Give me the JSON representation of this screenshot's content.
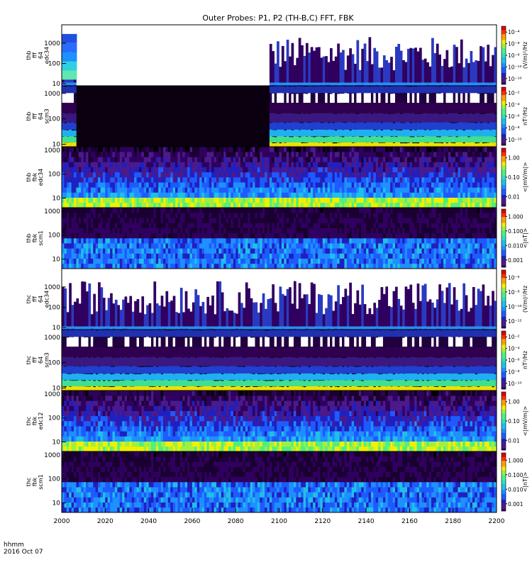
{
  "chart_data": {
    "type": "heatmap",
    "title": "Outer Probes: P1, P2 (TH-B,C) FFT, FBK",
    "x_ticks": [
      "2000",
      "2020",
      "2040",
      "2060",
      "2080",
      "2100",
      "2120",
      "2140",
      "2160",
      "2180",
      "2200"
    ],
    "x_range": [
      2000,
      2200
    ],
    "x_label_line1": "hhmm",
    "x_label_line2": "2016 Oct 07",
    "panels": [
      {
        "ylabel_lines": [
          "thb",
          "fff",
          "64",
          "edc34"
        ],
        "yticks": [
          {
            "v": 10,
            "t": "10"
          },
          {
            "v": 100,
            "t": "100"
          },
          {
            "v": 1000,
            "t": "1000"
          }
        ],
        "ylim": [
          8,
          8000
        ],
        "cb_label": "(V/m)²/Hz",
        "cb_ticks": [
          "10⁻¹⁰",
          "10⁻¹²",
          "10⁻⁶",
          "10⁻⁸",
          "10⁻⁴"
        ],
        "style": "edc-sparse",
        "gaps": [
          [
            2007,
            2096
          ]
        ],
        "bands": [
          {
            "x0": 2000,
            "x1": 2007,
            "start": 2000,
            "colors": [
              "#2050e0",
              "#2a6cff",
              "#1e90ff",
              "#30d0e0",
              "#60e8b0"
            ]
          }
        ]
      },
      {
        "ylabel_lines": [
          "thb",
          "fff",
          "64",
          "scm3"
        ],
        "yticks": [
          {
            "v": 10,
            "t": "10"
          },
          {
            "v": 100,
            "t": "100"
          },
          {
            "v": 1000,
            "t": "1000"
          }
        ],
        "ylim": [
          8,
          2000
        ],
        "cb_label": "nT²/Hz",
        "cb_ticks": [
          "10⁻¹⁰",
          "10⁻⁸",
          "10⁻⁶",
          "10⁻⁴",
          "10⁻²"
        ],
        "style": "scm-dense",
        "gaps": [
          [
            2007,
            2096
          ]
        ]
      },
      {
        "ylabel_lines": [
          "thb",
          "fbk",
          "edc34"
        ],
        "yticks": [
          {
            "v": 10,
            "t": "10"
          },
          {
            "v": 100,
            "t": "100"
          },
          {
            "v": 1000,
            "t": "1000"
          }
        ],
        "ylim": [
          4,
          1400
        ],
        "cb_label": "<|mV/m|>",
        "cb_ticks": [
          "0.01",
          "0.10",
          "1.00"
        ],
        "style": "fbk-edc",
        "gaps": []
      },
      {
        "ylabel_lines": [
          "thb",
          "fbk",
          "scm1"
        ],
        "yticks": [
          {
            "v": 10,
            "t": "10"
          },
          {
            "v": 100,
            "t": "100"
          },
          {
            "v": 1000,
            "t": "1000"
          }
        ],
        "ylim": [
          4,
          1400
        ],
        "cb_label": "<|nT|>",
        "cb_ticks": [
          "0.001",
          "0.010",
          "0.100",
          "1.000"
        ],
        "style": "fbk-scm",
        "gaps": []
      },
      {
        "ylabel_lines": [
          "thc",
          "fff",
          "64",
          "edc34"
        ],
        "yticks": [
          {
            "v": 10,
            "t": "10"
          },
          {
            "v": 100,
            "t": "100"
          },
          {
            "v": 1000,
            "t": "1000"
          }
        ],
        "ylim": [
          8,
          8000
        ],
        "cb_label": "(V/m)²/Hz",
        "cb_ticks": [
          "10⁻¹²",
          "10⁻¹⁰",
          "10⁻⁸",
          "10⁻⁶"
        ],
        "style": "edc-sparse",
        "gaps": []
      },
      {
        "ylabel_lines": [
          "thc",
          "fff",
          "64",
          "scm3"
        ],
        "yticks": [
          {
            "v": 10,
            "t": "10"
          },
          {
            "v": 100,
            "t": "100"
          },
          {
            "v": 1000,
            "t": "1000"
          }
        ],
        "ylim": [
          8,
          2000
        ],
        "cb_label": "nT²/Hz",
        "cb_ticks": [
          "10⁻¹⁰",
          "10⁻⁸",
          "10⁻⁶",
          "10⁻⁴",
          "10⁻²"
        ],
        "style": "scm-dense",
        "gaps": []
      },
      {
        "ylabel_lines": [
          "thc",
          "fbk",
          "edc12"
        ],
        "yticks": [
          {
            "v": 10,
            "t": "10"
          },
          {
            "v": 100,
            "t": "100"
          },
          {
            "v": 1000,
            "t": "1000"
          }
        ],
        "ylim": [
          4,
          1400
        ],
        "cb_label": "<|mV/m|>",
        "cb_ticks": [
          "0.01",
          "0.10",
          "1.00"
        ],
        "style": "fbk-edc",
        "gaps": []
      },
      {
        "ylabel_lines": [
          "thc",
          "fbk",
          "scm1"
        ],
        "yticks": [
          {
            "v": 10,
            "t": "10"
          },
          {
            "v": 100,
            "t": "100"
          },
          {
            "v": 1000,
            "t": "1000"
          }
        ],
        "ylim": [
          4,
          1400
        ],
        "cb_label": "<|nT|>",
        "cb_ticks": [
          "0.001",
          "0.010",
          "0.100",
          "1.000"
        ],
        "style": "fbk-scm",
        "gaps": []
      }
    ]
  }
}
